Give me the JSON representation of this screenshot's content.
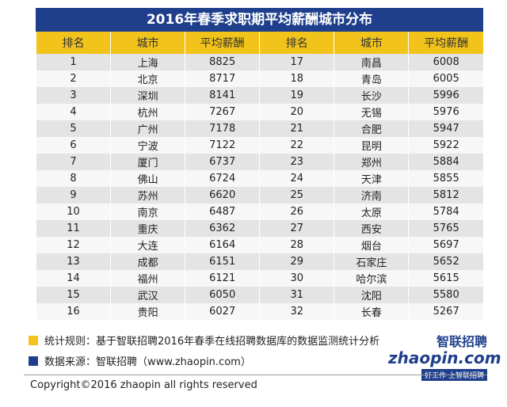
{
  "title": "2016年春季求职期平均薪酬城市分布",
  "table": {
    "header": [
      "排名",
      "城市",
      "平均薪酬",
      "排名",
      "城市",
      "平均薪酬"
    ],
    "rows": [
      [
        1,
        "上海",
        8825,
        17,
        "南昌",
        6008
      ],
      [
        2,
        "北京",
        8717,
        18,
        "青岛",
        6005
      ],
      [
        3,
        "深圳",
        8141,
        19,
        "长沙",
        5996
      ],
      [
        4,
        "杭州",
        7267,
        20,
        "无锡",
        5976
      ],
      [
        5,
        "广州",
        7178,
        21,
        "合肥",
        5947
      ],
      [
        6,
        "宁波",
        7122,
        22,
        "昆明",
        5922
      ],
      [
        7,
        "厦门",
        6737,
        23,
        "郑州",
        5884
      ],
      [
        8,
        "佛山",
        6724,
        24,
        "天津",
        5855
      ],
      [
        9,
        "苏州",
        6620,
        25,
        "济南",
        5812
      ],
      [
        10,
        "南京",
        6487,
        26,
        "太原",
        5784
      ],
      [
        11,
        "重庆",
        6362,
        27,
        "西安",
        5765
      ],
      [
        12,
        "大连",
        6164,
        28,
        "烟台",
        5697
      ],
      [
        13,
        "成都",
        6151,
        29,
        "石家庄",
        5652
      ],
      [
        14,
        "福州",
        6121,
        30,
        "哈尔滨",
        5615
      ],
      [
        15,
        "武汉",
        6050,
        31,
        "沈阳",
        5580
      ],
      [
        16,
        "贵阳",
        6027,
        32,
        "长春",
        5267
      ]
    ]
  },
  "notes": [
    "统计规则：基于智联招聘2016年春季在线招聘数据库的数据监测统计分析",
    "数据来源：智联招聘（www.zhaopin.com）"
  ],
  "logo": {
    "brand": "智联招聘",
    "site": "zhaopin.com",
    "slogan": "好工作 上智联招聘"
  },
  "copyright": "Copyright©2016 zhaopin all rights reserved"
}
